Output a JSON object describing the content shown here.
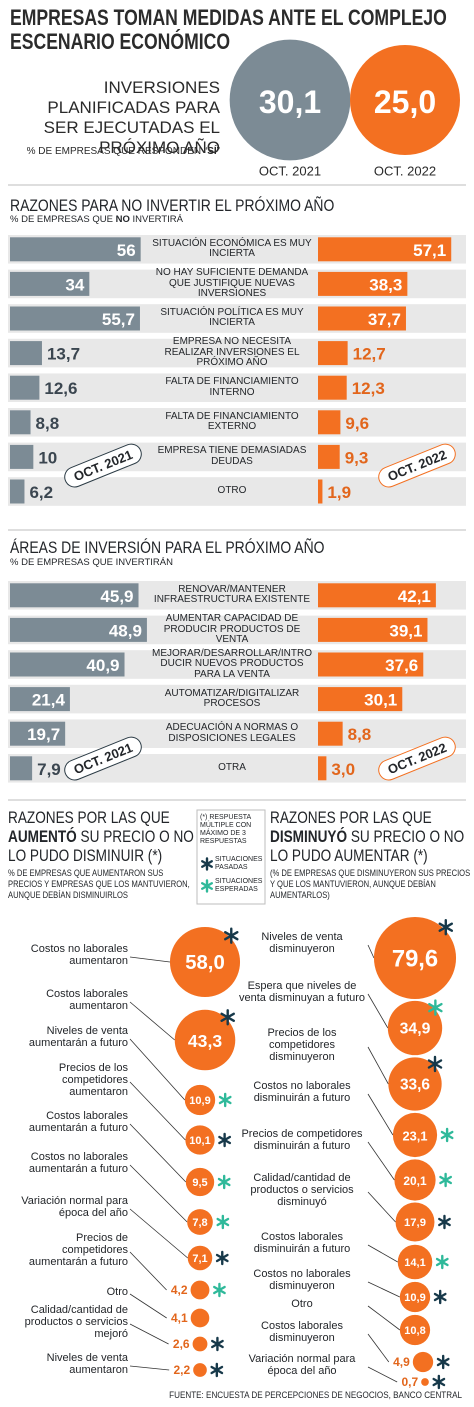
{
  "title": "EMPRESAS TOMAN MEDIDAS ANTE EL COMPLEJO ESCENARIO ECONÓMICO",
  "legend": {
    "note": "(*) RESPUESTA MÚLTIPLE CON MÁXIMO DE 3 RESPUESTAS",
    "items": [
      {
        "name": "SITUACIONES PASADAS",
        "color": "#17394a"
      },
      {
        "name": "SITUACIONES ESPERADAS",
        "color": "#2fb99a"
      }
    ]
  },
  "source": "FUENTE: ENCUESTA DE PERCEPCIONES DE NEGOCIOS, BANCO CENTRAL",
  "chart_data": [
    {
      "type": "circle",
      "title": "INVERSIONES PLANIFICADAS PARA SER EJECUTADAS EL PRÓXIMO AÑO",
      "subtitle": [
        "% DE EMPRESAS QUE RESPONDEN “",
        "SÍ",
        "”"
      ],
      "categories": [
        "OCT. 2021",
        "OCT. 2022"
      ],
      "values": [
        30.1,
        25.0
      ],
      "value_labels": [
        "30,1",
        "25,0"
      ],
      "colors": [
        "#7c8b95",
        "#f37021"
      ]
    },
    {
      "type": "mirror-bar",
      "title": "RAZONES PARA NO INVERTIR EL PRÓXIMO AÑO",
      "subtitle": [
        "% DE EMPRESAS QUE ",
        "NO",
        " INVERTIRÁ"
      ],
      "xlim": [
        0,
        60
      ],
      "categories": [
        "SITUACIÓN ECONÓMICA ES MUY INCIERTA",
        "NO HAY SUFICIENTE DEMANDA QUE JUSTIFIQUE NUEVAS INVERSIONES",
        "SITUACIÓN POLÍTICA ES MUY INCIERTA",
        "EMPRESA NO NECESITA REALIZAR INVERSIONES EL PRÓXIMO AÑO",
        "FALTA DE FINANCIAMIENTO INTERNO",
        "FALTA DE FINANCIAMIENTO EXTERNO",
        "EMPRESA TIENE DEMASIADAS DEUDAS",
        "OTRO"
      ],
      "series": [
        {
          "name": "OCT. 2021",
          "color": "#7c8b95",
          "values": [
            56,
            34,
            55.7,
            13.7,
            12.6,
            8.8,
            10,
            6.2
          ],
          "value_labels": [
            "56",
            "34",
            "55,7",
            "13,7",
            "12,6",
            "8,8",
            "10",
            "6,2"
          ]
        },
        {
          "name": "OCT. 2022",
          "color": "#f37021",
          "values": [
            57.1,
            38.3,
            37.7,
            12.7,
            12.3,
            9.6,
            9.3,
            1.9
          ],
          "value_labels": [
            "57,1",
            "38,3",
            "37,7",
            "12,7",
            "12,3",
            "9,6",
            "9,3",
            "1,9"
          ]
        }
      ]
    },
    {
      "type": "mirror-bar",
      "title": "ÁREAS DE INVERSIÓN PARA EL PRÓXIMO AÑO",
      "subtitle": [
        "% DE EMPRESAS QUE INVERTIRÁN"
      ],
      "xlim": [
        0,
        50
      ],
      "categories": [
        "RENOVAR/MANTENER INFRAESTRUCTURA EXISTENTE",
        "AUMENTAR CAPACIDAD DE PRODUCIR PRODUCTOS DE VENTA",
        "MEJORAR/DESARROLLAR/INTRODUCIR NUEVOS PRODUCTOS PARA LA VENTA",
        "AUTOMATIZAR/DIGITALIZAR PROCESOS",
        "ADECUACIÓN A NORMAS O DISPOSICIONES LEGALES",
        "OTRA"
      ],
      "series": [
        {
          "name": "OCT. 2021",
          "color": "#7c8b95",
          "values": [
            45.9,
            48.9,
            40.9,
            21.4,
            19.7,
            7.9
          ],
          "value_labels": [
            "45,9",
            "48,9",
            "40,9",
            "21,4",
            "19,7",
            "7,9"
          ]
        },
        {
          "name": "OCT. 2022",
          "color": "#f37021",
          "values": [
            42.1,
            39.1,
            37.6,
            30.1,
            8.8,
            3.0
          ],
          "value_labels": [
            "42,1",
            "39,1",
            "37,6",
            "30,1",
            "8,8",
            "3,0"
          ]
        }
      ]
    },
    {
      "type": "bubble",
      "title": [
        "RAZONES POR LAS QUE ",
        "AUMENTÓ",
        " SU PRECIO O NO LO PUDO DISMINUIR (*)"
      ],
      "subtitle": [
        "% DE EMPRESAS QUE AUMENTARON SUS PRECIOS Y EMPRESAS QUE LOS MANTUVIERON, AUNQUE DEBÍAN DISMINUIRLOS"
      ],
      "color": "#f37021",
      "categories": [
        "Costos no laborales aumentaron",
        "Costos laborales aumentaron",
        "Niveles de venta aumentarán a futuro",
        "Precios de los competidores aumentaron",
        "Costos laborales aumentarán a futuro",
        "Costos no laborales aumentarán a futuro",
        "Variación normal para época del año",
        "Precios de competidores aumentarán a futuro",
        "Otro",
        "Calidad/cantidad de productos o servicios mejoró",
        "Niveles de venta aumentaron"
      ],
      "values": [
        58.0,
        43.3,
        10.9,
        10.1,
        9.5,
        7.8,
        7.1,
        4.2,
        4.1,
        2.6,
        2.2
      ],
      "value_labels": [
        "58,0",
        "43,3",
        "10,9",
        "10,1",
        "9,5",
        "7,8",
        "7,1",
        "4,2",
        "4,1",
        "2,6",
        "2,2"
      ],
      "markers": [
        0,
        0,
        1,
        0,
        1,
        1,
        0,
        1,
        null,
        0,
        0
      ]
    },
    {
      "type": "bubble",
      "title": [
        "RAZONES POR LAS QUE ",
        "DISMINUYÓ",
        " SU PRECIO O NO LO PUDO AUMENTAR (*)"
      ],
      "subtitle": [
        "(% DE EMPRESAS QUE DISMINUYERON SUS PRECIOS Y QUE LOS MANTUVIERON, AUNQUE DEBÍAN AUMENTARLOS)"
      ],
      "color": "#f37021",
      "categories": [
        "Niveles de venta disminuyeron",
        "Espera que niveles de venta disminuyan a futuro",
        "Precios de los competidores disminuyeron",
        "Costos no laborales disminuirán a futuro",
        "Precios de competidores disminuirán a futuro",
        "Calidad/cantidad de productos o servicios disminuyó",
        "Costos laborales disminuirán a futuro",
        "Costos no laborales disminuyeron",
        "Otro",
        "Costos laborales disminuyeron",
        "Variación normal para época del año"
      ],
      "values": [
        79.6,
        34.9,
        33.6,
        23.1,
        20.1,
        17.9,
        14.1,
        10.9,
        10.8,
        4.9,
        0.7
      ],
      "value_labels": [
        "79,6",
        "34,9",
        "33,6",
        "23,1",
        "20,1",
        "17,9",
        "14,1",
        "10,9",
        "10,8",
        "4,9",
        "0,7"
      ],
      "markers": [
        0,
        1,
        0,
        1,
        1,
        0,
        1,
        0,
        null,
        0,
        0
      ]
    }
  ]
}
